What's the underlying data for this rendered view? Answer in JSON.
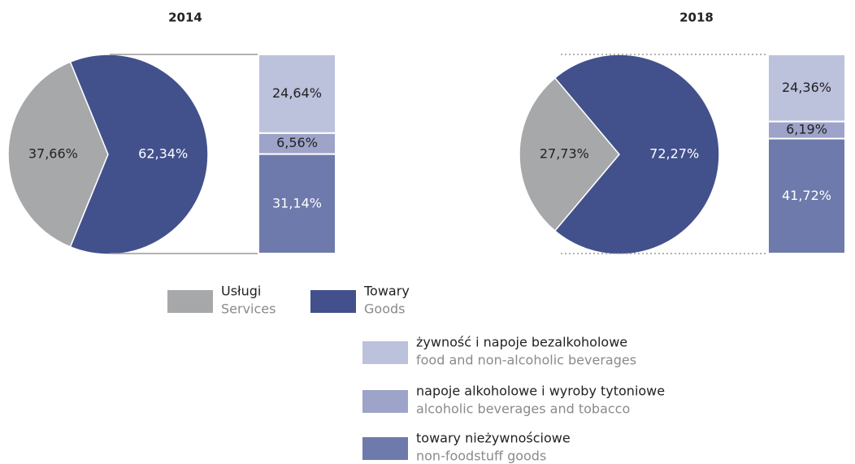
{
  "chart_data": [
    {
      "type": "pie",
      "title": "2014",
      "categories": [
        "Usługi",
        "Towary"
      ],
      "values": [
        37.66,
        62.34
      ],
      "value_labels": [
        "37,66%",
        "62,34%"
      ],
      "colors": [
        "#a7a8aa",
        "#42518c"
      ],
      "bar_values": [
        24.64,
        6.56,
        31.14
      ],
      "bar_value_labels": [
        "24,64%",
        "6,56%",
        "31,14%"
      ],
      "bar_colors": [
        "#bcc1dc",
        "#9ea3c9",
        "#6e7aab"
      ],
      "bar_text_colors": [
        "#222222",
        "#222222",
        "#ffffff"
      ],
      "connector_style": "solid"
    },
    {
      "type": "pie",
      "title": "2018",
      "categories": [
        "Usługi",
        "Towary"
      ],
      "values": [
        27.73,
        72.27
      ],
      "value_labels": [
        "27,73%",
        "72,27%"
      ],
      "colors": [
        "#a7a8aa",
        "#42518c"
      ],
      "bar_values": [
        24.36,
        6.19,
        41.72
      ],
      "bar_value_labels": [
        "24,36%",
        "6,19%",
        "41,72%"
      ],
      "bar_colors": [
        "#bcc1dc",
        "#9ea3c9",
        "#6e7aab"
      ],
      "bar_text_colors": [
        "#222222",
        "#222222",
        "#ffffff"
      ],
      "connector_style": "dotted"
    }
  ],
  "legend": [
    {
      "label": "Usługi",
      "sublabel": "Services",
      "color": "#a7a8aa"
    },
    {
      "label": "Towary",
      "sublabel": "Goods",
      "color": "#42518c"
    },
    {
      "label": "żywność i napoje bezalkoholowe",
      "sublabel": "food and non-alcoholic beverages",
      "color": "#bcc1dc"
    },
    {
      "label": "napoje alkoholowe i wyroby tytoniowe",
      "sublabel": "alcoholic beverages and tobacco",
      "color": "#9ea3c9"
    },
    {
      "label": "towary nieżywnościowe",
      "sublabel": "non-foodstuff goods",
      "color": "#6e7aab"
    }
  ]
}
